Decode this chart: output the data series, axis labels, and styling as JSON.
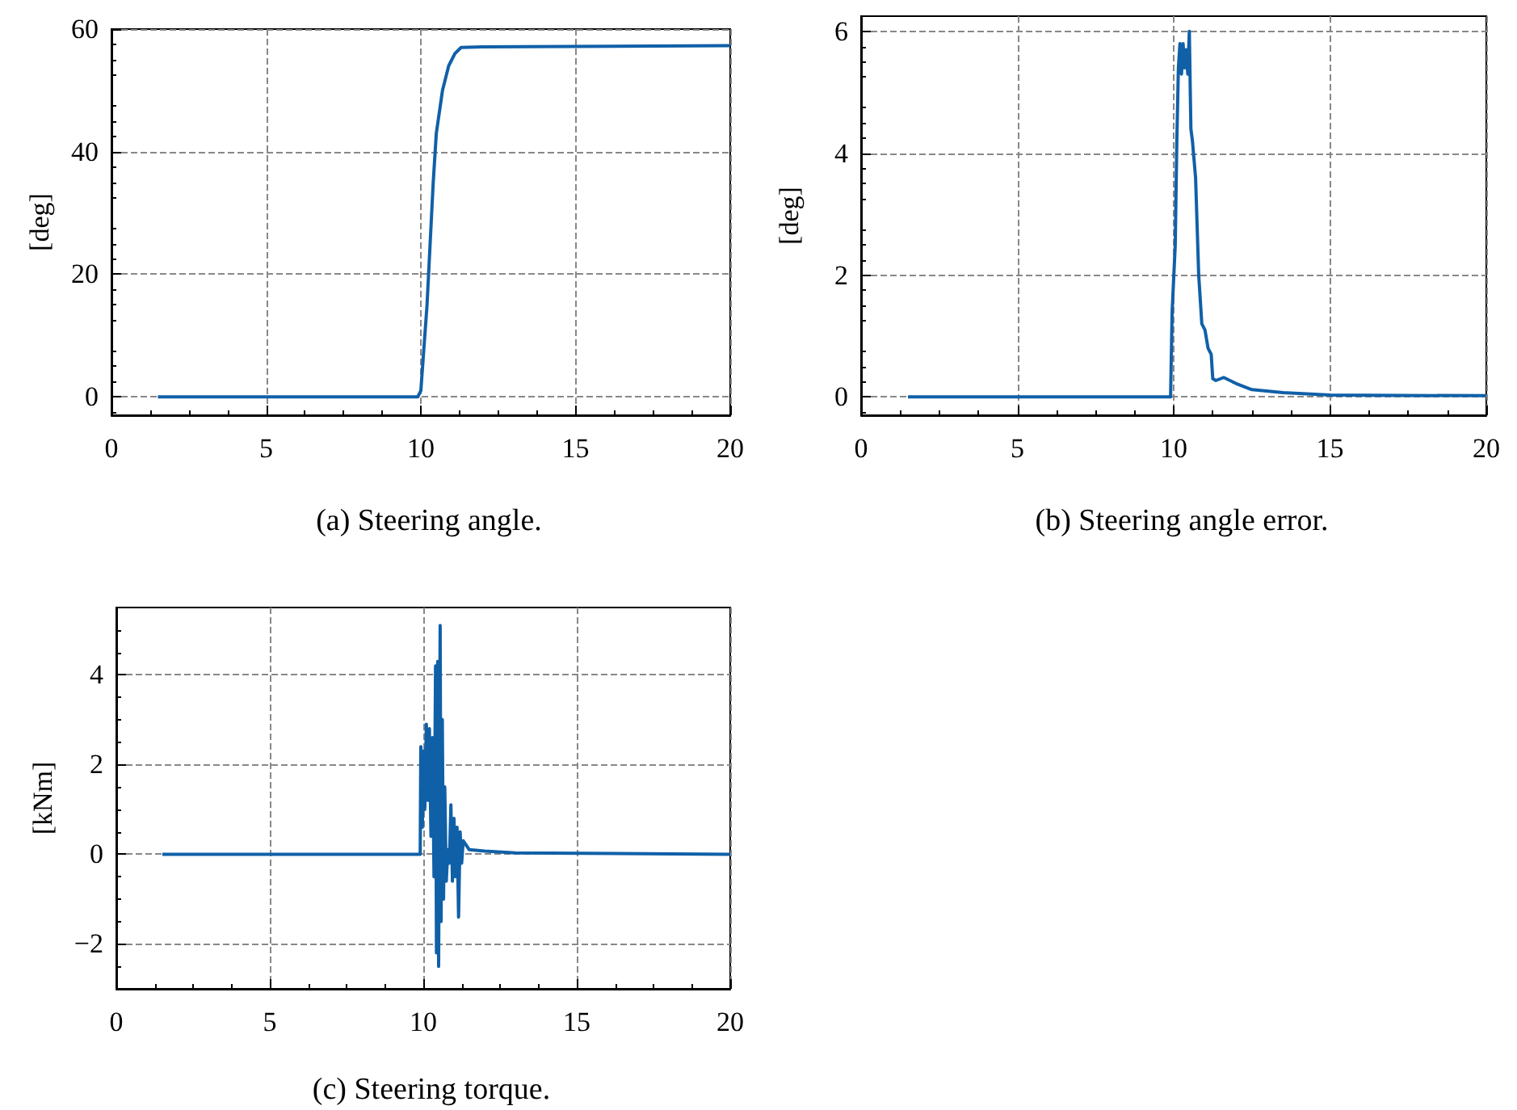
{
  "chart_data": [
    {
      "type": "line",
      "title": "(a) Steering angle.",
      "ylabel": "[deg]",
      "xlim": [
        0,
        20
      ],
      "xticks": [
        0,
        5,
        10,
        15,
        20
      ],
      "ylim": [
        -3,
        60
      ],
      "yticks": [
        0,
        20,
        40,
        60
      ],
      "grid": true,
      "x": [
        1.5,
        9.9,
        10.0,
        10.2,
        10.4,
        10.5,
        10.7,
        10.9,
        11.1,
        11.3,
        12,
        20
      ],
      "series": [
        {
          "color": "#1060a8",
          "values": [
            0,
            0,
            1,
            15,
            35,
            43,
            50,
            54,
            56,
            57,
            57.1,
            57.3
          ]
        }
      ]
    },
    {
      "type": "line",
      "title": "(b) Steering angle error.",
      "ylabel": "[deg]",
      "xlim": [
        0,
        20
      ],
      "xticks": [
        0,
        5,
        10,
        15,
        20
      ],
      "ylim": [
        -0.3,
        6.25
      ],
      "yticks": [
        0,
        2,
        4,
        6
      ],
      "grid": true,
      "x": [
        1.5,
        9.9,
        9.95,
        10.05,
        10.1,
        10.15,
        10.2,
        10.25,
        10.3,
        10.35,
        10.4,
        10.45,
        10.5,
        10.55,
        10.6,
        10.7,
        10.8,
        10.9,
        11.0,
        11.1,
        11.2,
        11.25,
        11.35,
        11.6,
        12,
        12.5,
        13.5,
        15,
        20
      ],
      "series": [
        {
          "color": "#1060a8",
          "values": [
            0,
            0,
            1.4,
            2.5,
            4.2,
            5.4,
            5.8,
            5.3,
            5.8,
            5.4,
            5.7,
            5.3,
            6.0,
            4.4,
            4.2,
            3.6,
            2.0,
            1.2,
            1.1,
            0.8,
            0.7,
            0.3,
            0.27,
            0.32,
            0.22,
            0.12,
            0.07,
            0.03,
            0.02
          ]
        }
      ]
    },
    {
      "type": "line",
      "title": "(c) Steering torque.",
      "ylabel": "[kNm]",
      "xlim": [
        0,
        20
      ],
      "xticks": [
        0,
        5,
        10,
        15,
        20
      ],
      "ylim": [
        -3,
        5.5
      ],
      "yticks": [
        {
          "value": -2,
          "label": "−2"
        },
        0,
        2,
        4
      ],
      "grid": true,
      "x": [
        1.5,
        9.9,
        9.92,
        9.97,
        10.0,
        10.05,
        10.1,
        10.15,
        10.2,
        10.25,
        10.3,
        10.35,
        10.4,
        10.43,
        10.47,
        10.5,
        10.55,
        10.58,
        10.62,
        10.66,
        10.7,
        10.75,
        10.8,
        10.85,
        10.9,
        10.95,
        11.0,
        11.05,
        11.1,
        11.15,
        11.2,
        11.25,
        11.3,
        11.5,
        12,
        13,
        20
      ],
      "series": [
        {
          "color": "#1060a8",
          "values": [
            0,
            0,
            2.4,
            0.6,
            2.3,
            1.0,
            2.9,
            1.2,
            2.8,
            0.4,
            2.6,
            -0.5,
            4.2,
            -2.2,
            4.3,
            -2.5,
            5.1,
            -1.5,
            3.0,
            -1.0,
            1.5,
            -0.6,
            0.1,
            -0.2,
            1.1,
            -0.6,
            0.8,
            -0.5,
            0.6,
            -1.4,
            0.5,
            -0.2,
            0.3,
            0.1,
            0.07,
            0.03,
            0
          ]
        }
      ]
    }
  ]
}
